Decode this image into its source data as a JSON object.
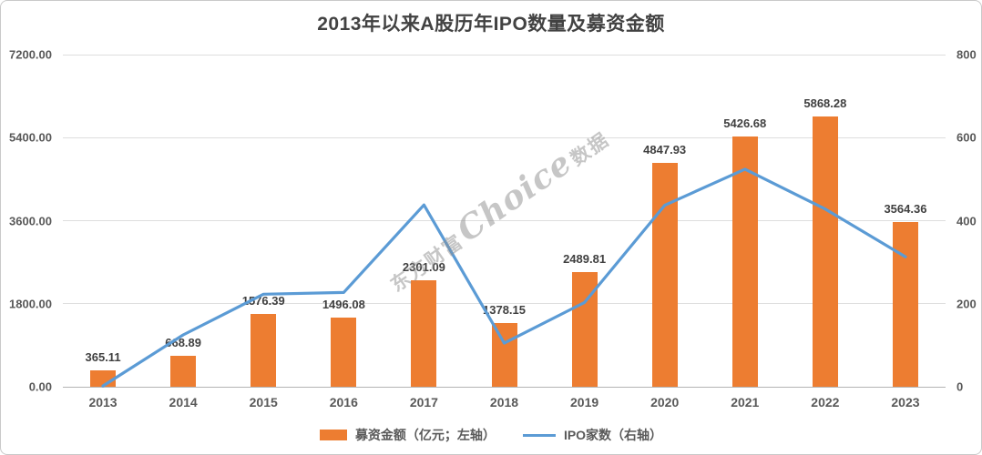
{
  "title": "2013年以来A股历年IPO数量及募资金额",
  "watermark": {
    "prefix": "东方财富",
    "brand": "Choice",
    "suffix": "数据"
  },
  "colors": {
    "bar": "#ED7D31",
    "line": "#5B9BD5",
    "grid": "#DEDEDE",
    "axis_line": "#B3B3B3",
    "axis_text": "#595959",
    "value_label_text": "#404040",
    "title_text": "#424242"
  },
  "chart_data": {
    "type": "bar",
    "subtype": "combo-bar-line-dual-axis",
    "title": "2013年以来A股历年IPO数量及募资金额",
    "categories": [
      "2013",
      "2014",
      "2015",
      "2016",
      "2017",
      "2018",
      "2019",
      "2020",
      "2021",
      "2022",
      "2023"
    ],
    "series": [
      {
        "name": "募资金额（亿元；左轴）",
        "type": "bar",
        "axis": "left",
        "unit": "亿元",
        "values": [
          365.11,
          668.89,
          1576.39,
          1496.08,
          2301.09,
          1378.15,
          2489.81,
          4847.93,
          5426.68,
          5868.28,
          3564.36
        ],
        "value_labels": [
          "365.11",
          "668.89",
          "1576.39",
          "1496.08",
          "2301.09",
          "1378.15",
          "2489.81",
          "4847.93",
          "5426.68",
          "5868.28",
          "3564.36"
        ]
      },
      {
        "name": "IPO家数（右轴）",
        "type": "line",
        "axis": "right",
        "unit": "家",
        "values": [
          2,
          125,
          223,
          227,
          438,
          105,
          203,
          437,
          524,
          428,
          313
        ]
      }
    ],
    "left_axis": {
      "min": 0,
      "max": 7200,
      "ticks": [
        "7200.00",
        "5400.00",
        "3600.00",
        "1800.00",
        "0.00"
      ]
    },
    "right_axis": {
      "min": 0,
      "max": 800,
      "ticks": [
        "800",
        "600",
        "400",
        "200",
        "0"
      ]
    },
    "grid": true,
    "legend_position": "bottom",
    "legend": [
      {
        "label": "募资金额（亿元；左轴）",
        "swatch": "bar"
      },
      {
        "label": "IPO家数（右轴）",
        "swatch": "line"
      }
    ]
  }
}
